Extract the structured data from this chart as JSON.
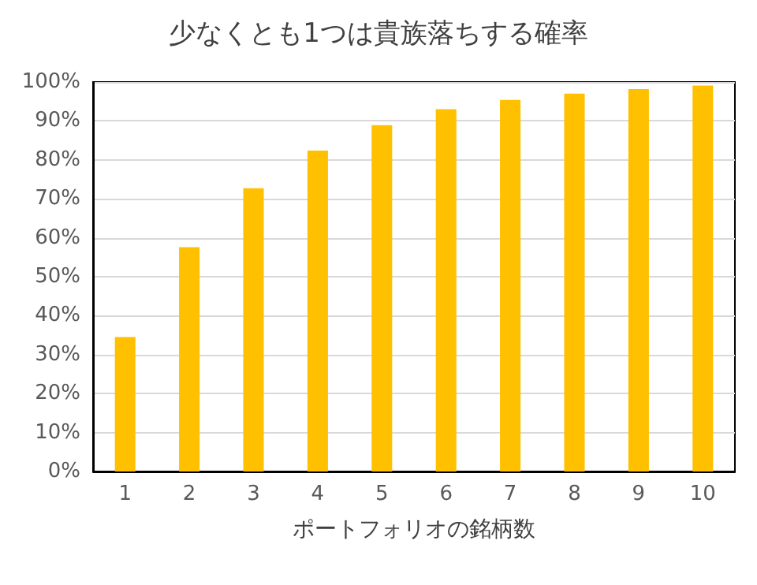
{
  "chart_data": {
    "type": "bar",
    "title": "少なくとも1つは貴族落ちする確率",
    "xlabel": "ポートフォリオの銘柄数",
    "categories": [
      "1",
      "2",
      "3",
      "4",
      "5",
      "6",
      "7",
      "8",
      "9",
      "10"
    ],
    "values": [
      34.5,
      57.6,
      72.7,
      82.4,
      88.9,
      93.0,
      95.4,
      97.0,
      98.2,
      99.1
    ],
    "color": "#ffc000",
    "ylim": [
      0,
      100
    ],
    "yticks": [
      {
        "value": 0,
        "label": "0%"
      },
      {
        "value": 10,
        "label": "10%"
      },
      {
        "value": 20,
        "label": "20%"
      },
      {
        "value": 30,
        "label": "30%"
      },
      {
        "value": 40,
        "label": "40%"
      },
      {
        "value": 50,
        "label": "50%"
      },
      {
        "value": 60,
        "label": "60%"
      },
      {
        "value": 70,
        "label": "70%"
      },
      {
        "value": 80,
        "label": "80%"
      },
      {
        "value": 90,
        "label": "90%"
      },
      {
        "value": 100,
        "label": "100%"
      }
    ],
    "grid": "y"
  }
}
